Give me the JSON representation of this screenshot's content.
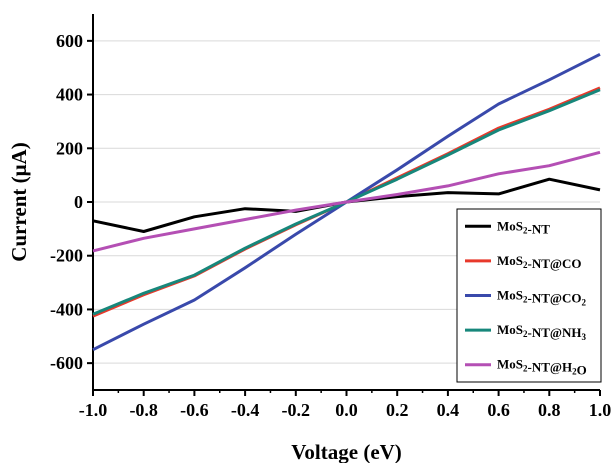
{
  "chart_data": {
    "type": "line",
    "title": "",
    "xlabel": "Voltage (eV)",
    "ylabel": "Current (μA)",
    "xlim": [
      -1.0,
      1.0
    ],
    "ylim": [
      -700,
      700
    ],
    "x": [
      -1.0,
      -0.8,
      -0.6,
      -0.4,
      -0.2,
      0.0,
      0.2,
      0.4,
      0.6,
      0.8,
      1.0
    ],
    "xticks": [
      "-1.0",
      "-0.8",
      "-0.6",
      "-0.4",
      "-0.2",
      "0.0",
      "0.2",
      "0.4",
      "0.6",
      "0.8",
      "1.0"
    ],
    "yticks": [
      "-600",
      "-400",
      "-200",
      "0",
      "200",
      "400",
      "600"
    ],
    "grid": "horizontal",
    "legend_position": "bottom-right",
    "series": [
      {
        "base": "MoS",
        "sub": "2",
        "tail": "-NT",
        "tail_sub": "",
        "color": "#000000",
        "values": [
          -70,
          -110,
          -55,
          -25,
          -35,
          0,
          20,
          35,
          30,
          85,
          45
        ]
      },
      {
        "base": "MoS",
        "sub": "2",
        "tail": "-NT@CO",
        "tail_sub": "",
        "color": "#e8392b",
        "values": [
          -425,
          -345,
          -275,
          -175,
          -85,
          0,
          90,
          180,
          275,
          345,
          425
        ]
      },
      {
        "base": "MoS",
        "sub": "2",
        "tail": "-NT@CO",
        "tail_sub": "2",
        "color": "#3949ab",
        "values": [
          -550,
          -455,
          -365,
          -245,
          -120,
          0,
          120,
          245,
          365,
          455,
          550
        ]
      },
      {
        "base": "MoS",
        "sub": "2",
        "tail": "-NT@NH",
        "tail_sub": "3",
        "color": "#17877b",
        "values": [
          -418,
          -340,
          -272,
          -172,
          -82,
          0,
          85,
          175,
          268,
          340,
          418
        ]
      },
      {
        "base": "MoS",
        "sub": "2",
        "tail": "-NT@H",
        "tail_sub": "2",
        "tail2": "O",
        "color": "#b44fb4",
        "values": [
          -182,
          -135,
          -100,
          -65,
          -30,
          0,
          28,
          60,
          105,
          135,
          185
        ]
      }
    ]
  }
}
